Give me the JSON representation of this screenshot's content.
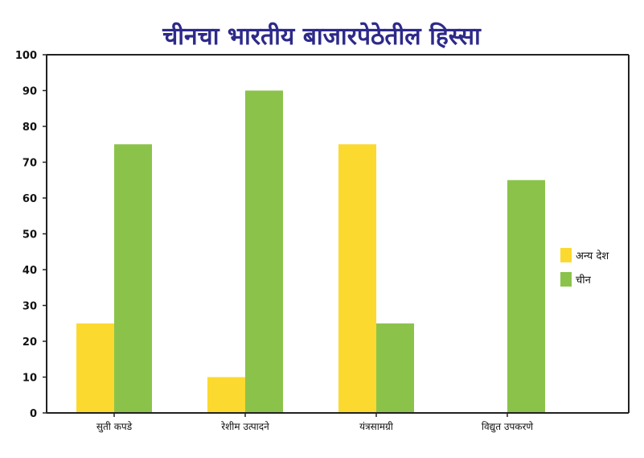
{
  "chart_data": {
    "type": "bar",
    "title": "चीनचा भारतीय बाजारपेठेतील हिस्सा",
    "categories": [
      "सुती कपडे",
      "रेशीम उत्पादने",
      "यंत्रसामग्री",
      "विद्युत उपकरणे"
    ],
    "series": [
      {
        "name": "अन्य देश",
        "color": "#fcd92f",
        "values": [
          25,
          10,
          75,
          0
        ]
      },
      {
        "name": "चीन",
        "color": "#8bc34a",
        "values": [
          75,
          90,
          25,
          65
        ]
      }
    ],
    "ylim": [
      0,
      100
    ],
    "yticks": [
      0,
      10,
      20,
      30,
      40,
      50,
      60,
      70,
      80,
      90,
      100
    ],
    "grid": false,
    "legend": "right"
  }
}
